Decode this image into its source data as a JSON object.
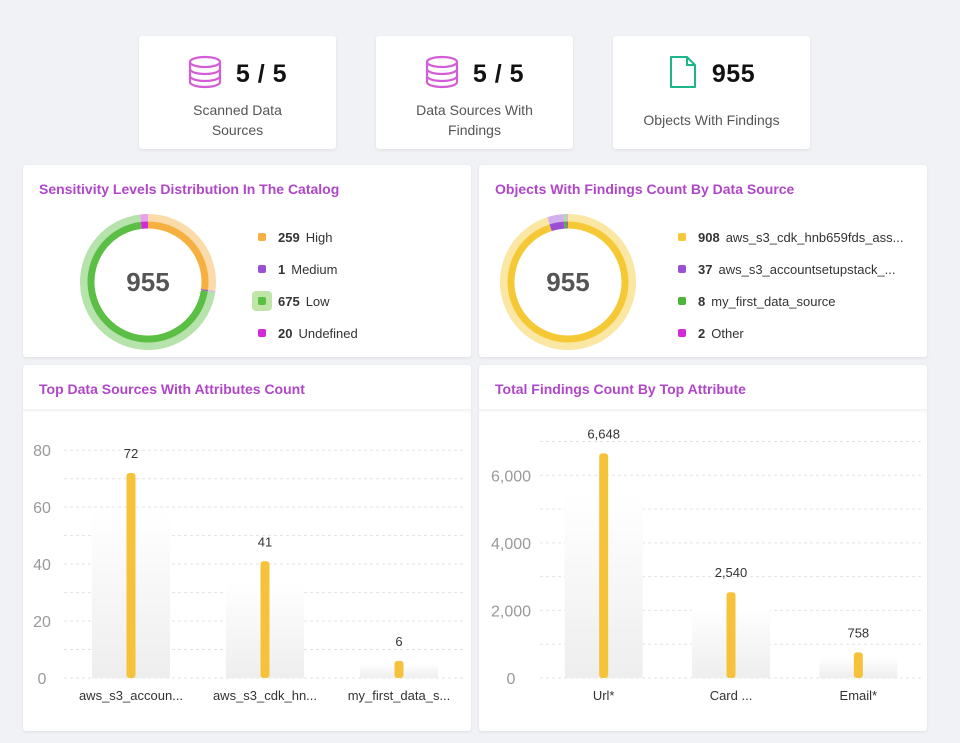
{
  "stats": [
    {
      "value": "5 / 5",
      "label_line1": "Scanned Data",
      "label_line2": "Sources",
      "icon": "database-icon",
      "color": "#d35dd6"
    },
    {
      "value": "5 / 5",
      "label_line1": "Data Sources With",
      "label_line2": "Findings",
      "icon": "database-icon",
      "color": "#d35dd6"
    },
    {
      "value": "955",
      "label_line1": "Objects With Findings",
      "icon": "file-icon",
      "color": "#1fb58a"
    }
  ],
  "sensitivity": {
    "title": "Sensitivity Levels Distribution In The Catalog",
    "total": "955",
    "items": [
      {
        "count": "259",
        "name": "High",
        "value": 259,
        "color": "#f5b041"
      },
      {
        "count": "1",
        "name": "Medium",
        "value": 1,
        "color": "#9b4fd6"
      },
      {
        "count": "675",
        "name": "Low",
        "value": 675,
        "color": "#5cbf45"
      },
      {
        "count": "20",
        "name": "Undefined",
        "value": 20,
        "color": "#d12ad6"
      }
    ]
  },
  "objects_by_source": {
    "title": "Objects With Findings Count By Data Source",
    "total": "955",
    "items": [
      {
        "count": "908",
        "name": "aws_s3_cdk_hnb659fds_ass...",
        "value": 908,
        "color": "#f5c935"
      },
      {
        "count": "37",
        "name": "aws_s3_accountsetupstack_...",
        "value": 37,
        "color": "#9b4fd6"
      },
      {
        "count": "8",
        "name": "my_first_data_source",
        "value": 8,
        "color": "#4fb43a"
      },
      {
        "count": "2",
        "name": "Other",
        "value": 2,
        "color": "#d12ad6"
      }
    ]
  },
  "chart_data": [
    {
      "type": "bar",
      "title": "Top Data Sources With Attributes Count",
      "categories": [
        "aws_s3_accoun...",
        "aws_s3_cdk_hn...",
        "my_first_data_s..."
      ],
      "values": [
        72,
        41,
        6
      ],
      "value_labels": [
        "72",
        "41",
        "6"
      ],
      "yticks": [
        0,
        20,
        40,
        60,
        80
      ],
      "ytick_labels": [
        "0",
        "20",
        "40",
        "60",
        "80"
      ],
      "ylim": [
        0,
        85
      ],
      "color": "#f5c23a",
      "grid": true
    },
    {
      "type": "bar",
      "title": "Total Findings Count By Top Attribute",
      "categories": [
        "Url*",
        "Card ...",
        "Email*"
      ],
      "values": [
        6648,
        2540,
        758
      ],
      "value_labels": [
        "6,648",
        "2,540",
        "758"
      ],
      "yticks": [
        0,
        2000,
        4000,
        6000
      ],
      "ytick_labels": [
        "0",
        "2,000",
        "4,000",
        "6,000"
      ],
      "ylim": [
        0,
        7400
      ],
      "color": "#f5c23a",
      "grid": true
    }
  ]
}
